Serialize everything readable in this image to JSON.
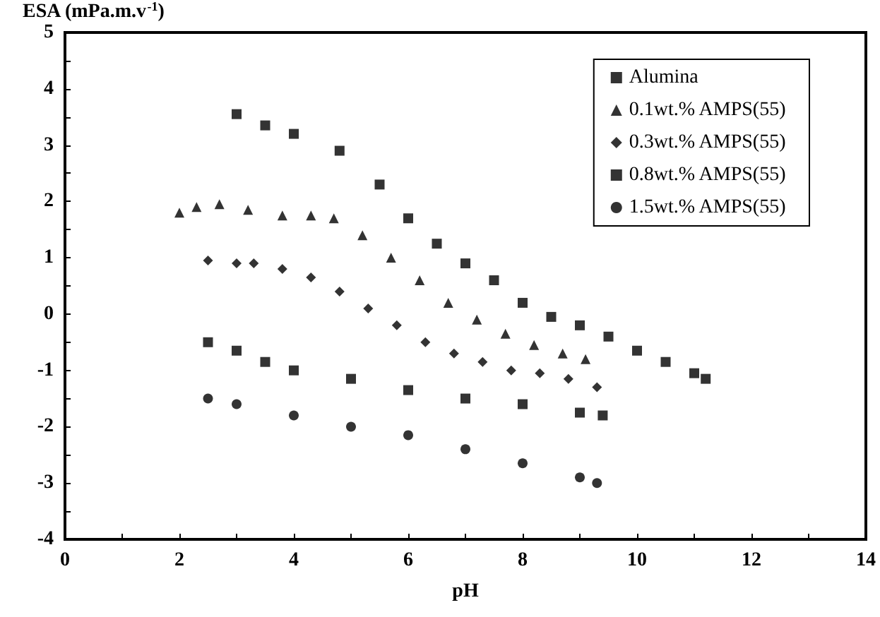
{
  "chart_data": {
    "type": "scatter",
    "xlabel": "pH",
    "ylabel": "ESA (mPa.m.v$^{-1}$)",
    "xlim": [
      0,
      14
    ],
    "ylim": [
      -4,
      5
    ],
    "xticks": [
      0,
      {
        "value": 1,
        "label": null
      },
      2,
      {
        "value": 3,
        "label": null
      },
      4,
      {
        "value": 5,
        "label": null
      },
      6,
      {
        "value": 7,
        "label": null
      },
      8,
      {
        "value": 9,
        "label": null
      },
      10,
      {
        "value": 11,
        "label": null
      },
      12,
      {
        "value": 13,
        "label": null
      },
      14
    ],
    "yticks": [
      -4,
      {
        "value": -3.5,
        "label": null
      },
      -3,
      {
        "value": -2.5,
        "label": null
      },
      -2,
      {
        "value": -1.5,
        "label": null
      },
      -1,
      {
        "value": -0.5,
        "label": null
      },
      0,
      {
        "value": 0.5,
        "label": null
      },
      1,
      {
        "value": 1.5,
        "label": null
      },
      2,
      {
        "value": 2.5,
        "label": null
      },
      3,
      {
        "value": 3.5,
        "label": null
      },
      4,
      {
        "value": 4.5,
        "label": null
      },
      5
    ],
    "grid": false,
    "legend": "top right",
    "series": [
      {
        "name": "Alumina",
        "color": "#000000",
        "marker": "square",
        "x": [
          3.0,
          3.5,
          4.0,
          4.8,
          5.5,
          6.0,
          6.5,
          7.0,
          7.5,
          8.0,
          8.5,
          9.0,
          9.5,
          10.0,
          10.5,
          11.0,
          11.2
        ],
        "values": [
          3.55,
          3.35,
          3.2,
          2.9,
          2.3,
          1.7,
          1.25,
          0.9,
          0.6,
          0.2,
          -0.05,
          -0.2,
          -0.4,
          -0.65,
          -0.85,
          -1.05,
          -1.15
        ]
      },
      {
        "name": "0.1wt.% AMPS(55)",
        "color": "#000000",
        "marker": "triangle",
        "x": [
          2.0,
          2.3,
          2.7,
          3.2,
          3.8,
          4.3,
          4.7,
          5.2,
          5.7,
          6.2,
          6.7,
          7.2,
          7.7,
          8.2,
          8.7,
          9.1
        ],
        "values": [
          1.8,
          1.9,
          1.95,
          1.85,
          1.75,
          1.75,
          1.7,
          1.4,
          1.0,
          0.6,
          0.2,
          -0.1,
          -0.35,
          -0.55,
          -0.7,
          -0.8
        ]
      },
      {
        "name": "0.3wt.% AMPS(55)",
        "color": "#000000",
        "marker": "diamond",
        "x": [
          2.5,
          3.0,
          3.3,
          3.8,
          4.3,
          4.8,
          5.3,
          5.8,
          6.3,
          6.8,
          7.3,
          7.8,
          8.3,
          8.8,
          9.3
        ],
        "values": [
          0.95,
          0.9,
          0.9,
          0.8,
          0.65,
          0.4,
          0.1,
          -0.2,
          -0.5,
          -0.7,
          -0.85,
          -1.0,
          -1.05,
          -1.15,
          -1.3
        ]
      },
      {
        "name": "0.8wt.% AMPS(55)",
        "color": "#000000",
        "marker": "square",
        "x": [
          2.5,
          3.0,
          3.5,
          4.0,
          5.0,
          6.0,
          7.0,
          8.0,
          9.0,
          9.4
        ],
        "values": [
          -0.5,
          -0.65,
          -0.85,
          -1.0,
          -1.15,
          -1.35,
          -1.5,
          -1.6,
          -1.75,
          -1.8
        ]
      },
      {
        "name": "1.5wt.% AMPS(55)",
        "color": "#000000",
        "marker": "circle",
        "x": [
          2.5,
          3.0,
          4.0,
          5.0,
          6.0,
          7.0,
          8.0,
          9.0,
          9.3
        ],
        "values": [
          -1.5,
          -1.6,
          -1.8,
          -2.0,
          -2.15,
          -2.4,
          -2.65,
          -2.9,
          -3.0
        ]
      }
    ]
  }
}
